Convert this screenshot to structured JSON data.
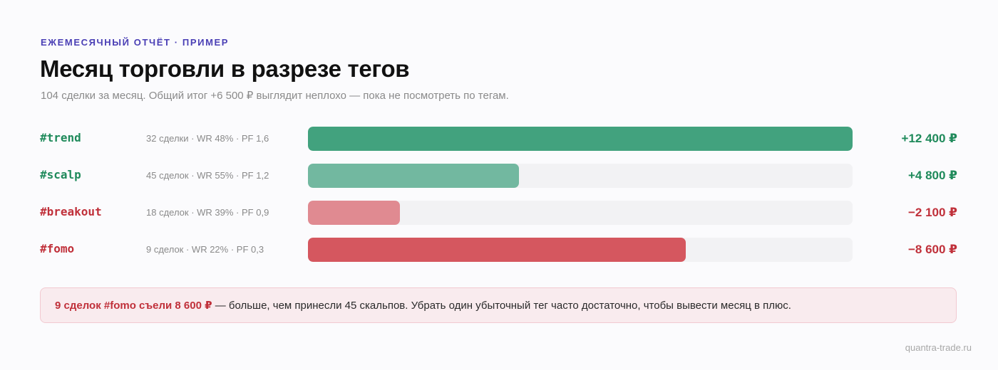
{
  "header": {
    "eyebrow": "ЕЖЕМЕСЯЧНЫЙ ОТЧЁТ · ПРИМЕР",
    "title": "Месяц торговли в разрезе тегов",
    "subtitle": "104 сделки за месяц. Общий итог +6 500 ₽ выглядит неплохо — пока не посмотреть по тегам."
  },
  "chart_data": {
    "type": "bar",
    "orientation": "horizontal",
    "scale": "magnitude",
    "categories": [
      "#trend",
      "#scalp",
      "#breakout",
      "#fomo"
    ],
    "values": [
      12400,
      4800,
      -2100,
      -8600
    ],
    "unit": "₽",
    "rows": [
      {
        "tag": "#trend",
        "stats": "32 сделки · WR 48% · PF 1,6",
        "value": 12400,
        "label": "+12 400 ₽",
        "color": "#42a27e"
      },
      {
        "tag": "#scalp",
        "stats": "45 сделок · WR 55% · PF 1,2",
        "value": 4800,
        "label": "+4 800 ₽",
        "color": "#72b8a0"
      },
      {
        "tag": "#breakout",
        "stats": "18 сделок · WR 39% · PF 0,9",
        "value": -2100,
        "label": "−2 100 ₽",
        "color": "#e08a91"
      },
      {
        "tag": "#fomo",
        "stats": "9 сделок · WR 22% · PF 0,3",
        "value": -8600,
        "label": "−8 600 ₽",
        "color": "#d5575f"
      }
    ],
    "colors": {
      "positive_text": "#1f8a5b",
      "negative_text": "#c0303a",
      "track": "#f2f2f4"
    }
  },
  "callout": {
    "highlight": "9 сделок #fomo съели 8 600 ₽",
    "text": " — больше, чем принесли 45 скальпов. Убрать один убыточный тег часто достаточно, чтобы вывести месяц в плюс."
  },
  "footer": {
    "site": "quantra-trade.ru"
  }
}
